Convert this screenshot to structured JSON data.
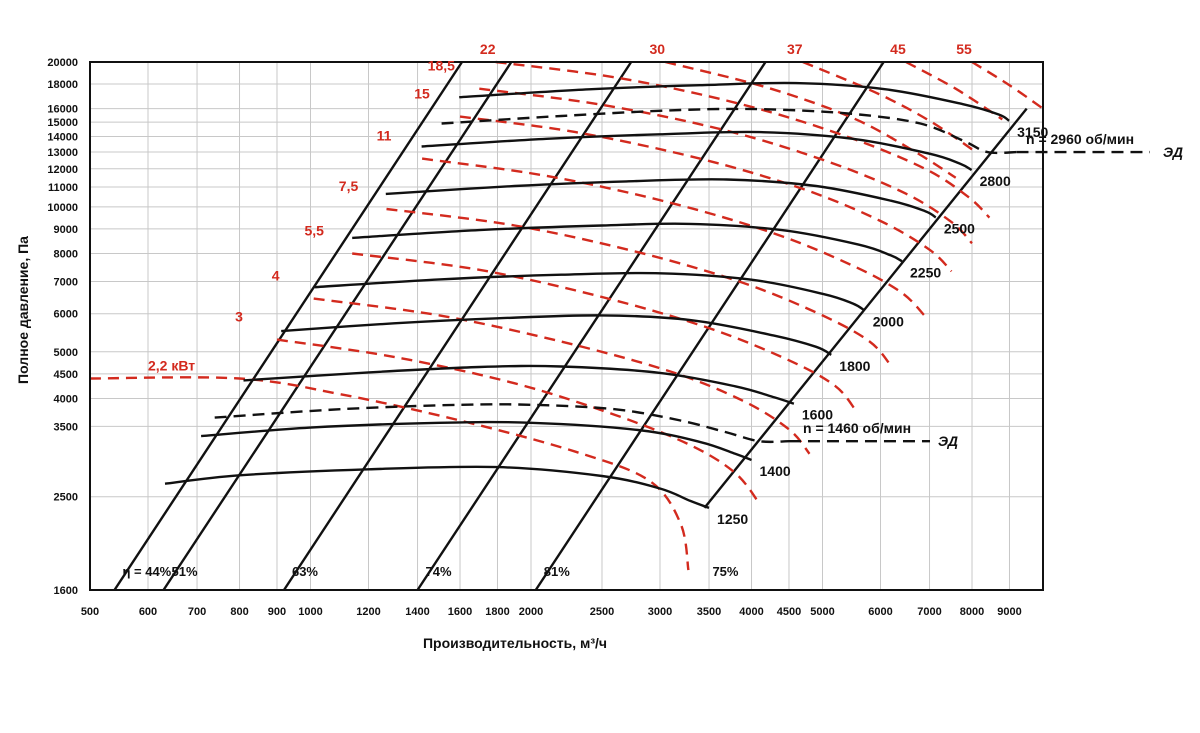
{
  "chart_data": {
    "type": "line",
    "title": "",
    "xlabel": "Производительность, м³/ч",
    "ylabel": "Полное давление, Па",
    "xscale": "log",
    "yscale": "log",
    "xlim": [
      500,
      10000
    ],
    "ylim": [
      1600,
      20000
    ],
    "grid": true,
    "x_ticks": [
      500,
      600,
      700,
      800,
      900,
      1000,
      1200,
      1400,
      1600,
      1800,
      2000,
      2500,
      3000,
      3500,
      4000,
      4500,
      5000,
      6000,
      7000,
      8000,
      9000
    ],
    "y_ticks": [
      1600,
      2500,
      3500,
      4000,
      4500,
      5000,
      6000,
      7000,
      8000,
      9000,
      10000,
      11000,
      12000,
      13000,
      14000,
      15000,
      16000,
      18000,
      20000
    ],
    "speed_curves": [
      {
        "label": "1250",
        "points": [
          [
            633,
            2660
          ],
          [
            800,
            2770
          ],
          [
            1200,
            2850
          ],
          [
            1800,
            2880
          ],
          [
            2500,
            2760
          ],
          [
            3000,
            2600
          ],
          [
            3300,
            2450
          ],
          [
            3500,
            2370
          ]
        ]
      },
      {
        "label": "1400",
        "points": [
          [
            709,
            3340
          ],
          [
            1000,
            3480
          ],
          [
            1500,
            3560
          ],
          [
            2000,
            3560
          ],
          [
            2800,
            3440
          ],
          [
            3400,
            3250
          ],
          [
            3800,
            3070
          ],
          [
            4000,
            2980
          ]
        ]
      },
      {
        "label": "1600",
        "points": [
          [
            810,
            4360
          ],
          [
            1200,
            4530
          ],
          [
            1700,
            4650
          ],
          [
            2200,
            4660
          ],
          [
            3000,
            4520
          ],
          [
            3800,
            4240
          ],
          [
            4300,
            4020
          ],
          [
            4570,
            3900
          ]
        ]
      },
      {
        "label": "1800",
        "points": [
          [
            912,
            5520
          ],
          [
            1300,
            5730
          ],
          [
            1800,
            5870
          ],
          [
            2500,
            5950
          ],
          [
            3300,
            5820
          ],
          [
            4300,
            5400
          ],
          [
            4900,
            5120
          ],
          [
            5140,
            4930
          ]
        ]
      },
      {
        "label": "2000",
        "points": [
          [
            1013,
            6810
          ],
          [
            1500,
            7070
          ],
          [
            2200,
            7230
          ],
          [
            3000,
            7280
          ],
          [
            4000,
            7060
          ],
          [
            5000,
            6600
          ],
          [
            5500,
            6300
          ],
          [
            5710,
            6090
          ]
        ]
      },
      {
        "label": "2250",
        "points": [
          [
            1140,
            8620
          ],
          [
            1700,
            8950
          ],
          [
            2500,
            9150
          ],
          [
            3300,
            9220
          ],
          [
            4400,
            8950
          ],
          [
            5600,
            8350
          ],
          [
            6200,
            7930
          ],
          [
            6420,
            7710
          ]
        ]
      },
      {
        "label": "2500",
        "points": [
          [
            1267,
            10640
          ],
          [
            1900,
            11050
          ],
          [
            2700,
            11300
          ],
          [
            3700,
            11400
          ],
          [
            4900,
            11050
          ],
          [
            6200,
            10300
          ],
          [
            6900,
            9800
          ],
          [
            7140,
            9510
          ]
        ]
      },
      {
        "label": "2800",
        "points": [
          [
            1418,
            13350
          ],
          [
            2100,
            13850
          ],
          [
            3000,
            14150
          ],
          [
            4100,
            14300
          ],
          [
            5500,
            13850
          ],
          [
            7000,
            12900
          ],
          [
            7700,
            12300
          ],
          [
            7990,
            11930
          ]
        ]
      },
      {
        "label": "3150",
        "points": [
          [
            1596,
            16900
          ],
          [
            2400,
            17550
          ],
          [
            3400,
            17900
          ],
          [
            4600,
            18080
          ],
          [
            6100,
            17550
          ],
          [
            7800,
            16330
          ],
          [
            8700,
            15560
          ],
          [
            8990,
            15100
          ]
        ]
      }
    ],
    "motor_curves": [
      {
        "label": "n = 1460 об/мин",
        "points": [
          [
            740,
            3650
          ],
          [
            1100,
            3800
          ],
          [
            1600,
            3880
          ],
          [
            2000,
            3880
          ],
          [
            2600,
            3800
          ],
          [
            3200,
            3600
          ],
          [
            3700,
            3400
          ],
          [
            4100,
            3260
          ],
          [
            4500,
            3260
          ]
        ]
      },
      {
        "label": "n = 2960 об/мин",
        "points": [
          [
            1510,
            14900
          ],
          [
            2200,
            15450
          ],
          [
            3200,
            15900
          ],
          [
            4200,
            15950
          ],
          [
            5500,
            15600
          ],
          [
            6800,
            14900
          ],
          [
            7800,
            13700
          ],
          [
            8400,
            13000
          ],
          [
            9200,
            13000
          ]
        ]
      }
    ],
    "motor_label": "ЭД",
    "efficiency_lines": [
      {
        "label": "η = 44%",
        "points": [
          [
            540,
            1600
          ],
          [
            1610,
            20000
          ]
        ]
      },
      {
        "label": "51%",
        "points": [
          [
            630,
            1600
          ],
          [
            1880,
            20000
          ]
        ]
      },
      {
        "label": "63%",
        "points": [
          [
            920,
            1600
          ],
          [
            2740,
            20000
          ]
        ]
      },
      {
        "label": "74%",
        "points": [
          [
            1400,
            1600
          ],
          [
            4180,
            20000
          ]
        ]
      },
      {
        "label": "81%",
        "points": [
          [
            2030,
            1600
          ],
          [
            6060,
            20000
          ]
        ]
      },
      {
        "label": "75%",
        "points": [
          [
            3450,
            2370
          ],
          [
            9500,
            16000
          ]
        ]
      }
    ],
    "power_lines": [
      {
        "label": "2,2 кВт",
        "points": [
          [
            500,
            4400
          ],
          [
            800,
            4400
          ],
          [
            1100,
            4080
          ],
          [
            1600,
            3600
          ],
          [
            2300,
            3100
          ],
          [
            2900,
            2700
          ],
          [
            3200,
            2200
          ],
          [
            3280,
            1760
          ]
        ]
      },
      {
        "label": "3",
        "points": [
          [
            900,
            5300
          ],
          [
            1300,
            4880
          ],
          [
            1900,
            4300
          ],
          [
            2600,
            3700
          ],
          [
            3300,
            3200
          ],
          [
            3800,
            2800
          ],
          [
            4100,
            2420
          ]
        ]
      },
      {
        "label": "4",
        "points": [
          [
            1010,
            6450
          ],
          [
            1500,
            5950
          ],
          [
            2200,
            5250
          ],
          [
            3100,
            4550
          ],
          [
            3900,
            3950
          ],
          [
            4500,
            3450
          ],
          [
            4800,
            3070
          ]
        ]
      },
      {
        "label": "5,5",
        "points": [
          [
            1140,
            8000
          ],
          [
            1700,
            7400
          ],
          [
            2500,
            6500
          ],
          [
            3500,
            5600
          ],
          [
            4500,
            4800
          ],
          [
            5200,
            4250
          ],
          [
            5550,
            3780
          ]
        ]
      },
      {
        "label": "7,5",
        "points": [
          [
            1270,
            9900
          ],
          [
            1900,
            9150
          ],
          [
            2800,
            8050
          ],
          [
            3900,
            6950
          ],
          [
            5000,
            5950
          ],
          [
            5800,
            5250
          ],
          [
            6200,
            4680
          ]
        ]
      },
      {
        "label": "11",
        "points": [
          [
            1420,
            12600
          ],
          [
            2100,
            11600
          ],
          [
            3100,
            10200
          ],
          [
            4300,
            8800
          ],
          [
            5500,
            7550
          ],
          [
            6400,
            6650
          ],
          [
            6900,
            5930
          ]
        ]
      },
      {
        "label": "15",
        "points": [
          [
            1600,
            15400
          ],
          [
            2300,
            14300
          ],
          [
            3400,
            12600
          ],
          [
            4700,
            10900
          ],
          [
            6000,
            9350
          ],
          [
            7000,
            8150
          ],
          [
            7500,
            7350
          ]
        ]
      },
      {
        "label": "18,5",
        "points": [
          [
            1700,
            17600
          ],
          [
            2500,
            16300
          ],
          [
            3700,
            14400
          ],
          [
            5100,
            12400
          ],
          [
            6500,
            10650
          ],
          [
            7500,
            9300
          ],
          [
            8000,
            8400
          ]
        ]
      },
      {
        "label": "22",
        "points": [
          [
            1790,
            20000
          ],
          [
            2650,
            18500
          ],
          [
            3900,
            16300
          ],
          [
            5400,
            14000
          ],
          [
            6900,
            12000
          ],
          [
            7900,
            10500
          ],
          [
            8450,
            9500
          ]
        ]
      },
      {
        "label": "30",
        "points": [
          [
            3050,
            20000
          ],
          [
            4200,
            17700
          ],
          [
            5500,
            15300
          ],
          [
            6700,
            13000
          ],
          [
            7600,
            11500
          ]
        ]
      },
      {
        "label": "37",
        "points": [
          [
            4700,
            20000
          ],
          [
            5900,
            17300
          ],
          [
            7000,
            15100
          ],
          [
            8100,
            13000
          ]
        ]
      },
      {
        "label": "45",
        "points": [
          [
            6500,
            20000
          ],
          [
            7600,
            17600
          ],
          [
            8800,
            15200
          ]
        ]
      },
      {
        "label": "55",
        "points": [
          [
            8000,
            20000
          ],
          [
            9000,
            17900
          ],
          [
            10000,
            16000
          ]
        ]
      }
    ]
  }
}
